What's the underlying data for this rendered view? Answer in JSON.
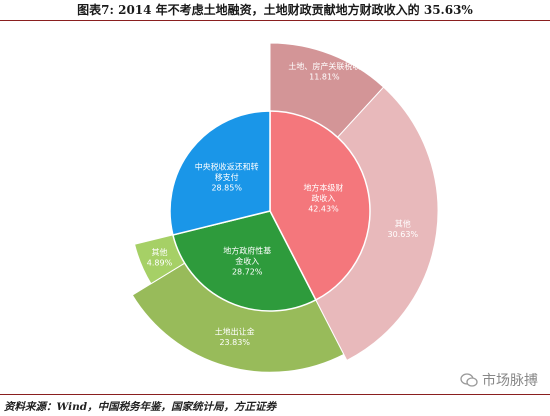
{
  "title": "图表7:   2014 年不考虑土地融资，土地财政贡献地方财政收入的 35.63%",
  "source": "资料来源：Wind，中国税务年鉴，国家统计局，方正证券",
  "watermark": "市场脉搏",
  "chart_data": {
    "type": "pie",
    "inner": [
      {
        "label": "地方本级财政收入",
        "lines": [
          "地方本级财",
          "政收入"
        ],
        "pct": "42.43%",
        "value": 42.43,
        "color": "#f4777c"
      },
      {
        "label": "地方政府性基金收入",
        "lines": [
          "地方政府性基",
          "金收入"
        ],
        "pct": "28.72%",
        "value": 28.72,
        "color": "#2e9b3c"
      },
      {
        "label": "中央税收返还和转移支付",
        "lines": [
          "中央税收返还和转",
          "移支付"
        ],
        "pct": "28.85%",
        "value": 28.85,
        "color": "#1a96e8"
      }
    ],
    "outer": [
      {
        "label": "土地、房产关联税收",
        "lines": [
          "土地、房产关联税收"
        ],
        "pct": "11.81%",
        "value": 11.81,
        "color": "#d39597"
      },
      {
        "label": "其他",
        "lines": [
          "其他"
        ],
        "pct": "30.63%",
        "value": 30.63,
        "color": "#e8b9bb"
      },
      {
        "label": "土地出让金",
        "lines": [
          "土地出让金"
        ],
        "pct": "23.83%",
        "value": 23.83,
        "color": "#98bb5a"
      },
      {
        "label": "其他",
        "lines": [
          "其他"
        ],
        "pct": "4.89%",
        "value": 4.89,
        "color": "#a6d066"
      }
    ]
  }
}
